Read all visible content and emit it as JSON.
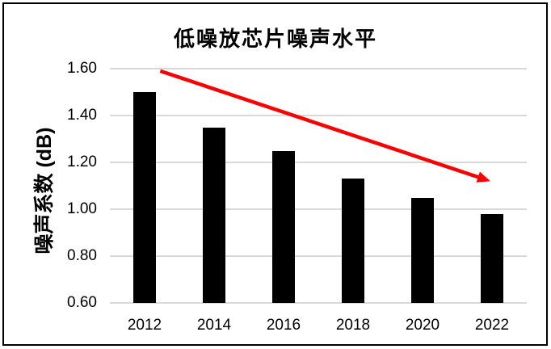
{
  "chart_data": {
    "type": "bar",
    "title": "低噪放芯片噪声水平",
    "ylabel": "噪声系数 (dB)",
    "xlabel": "",
    "categories": [
      "2012",
      "2014",
      "2016",
      "2018",
      "2020",
      "2022"
    ],
    "values": [
      1.5,
      1.35,
      1.25,
      1.13,
      1.05,
      0.98
    ],
    "ylim": [
      0.6,
      1.6
    ],
    "ytick_labels": [
      "0.60",
      "0.80",
      "1.00",
      "1.20",
      "1.40",
      "1.60"
    ],
    "grid": true,
    "legend": "none",
    "bar_color": "#000000",
    "gridline_color": "#d9d9d9",
    "background_color": "#ffffff",
    "border_color": "#000000",
    "trend_arrow": {
      "meaning": "downward trend annotation",
      "color": "#fb0000",
      "from": {
        "year": 2012.45,
        "value": 1.59
      },
      "to": {
        "year": 2021.95,
        "value": 1.12
      }
    }
  }
}
